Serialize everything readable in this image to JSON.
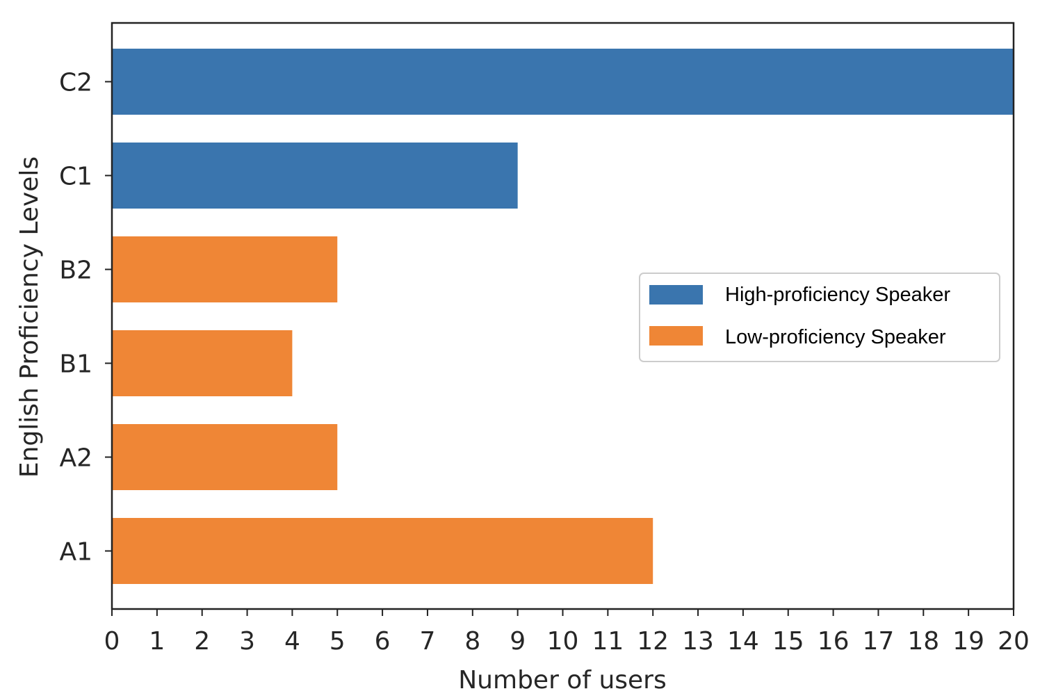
{
  "chart_data": {
    "type": "bar",
    "orientation": "horizontal",
    "categories": [
      "C2",
      "C1",
      "B2",
      "B1",
      "A2",
      "A1"
    ],
    "values": [
      20,
      9,
      5,
      4,
      5,
      12
    ],
    "groups": [
      "High-proficiency Speaker",
      "High-proficiency Speaker",
      "Low-proficiency Speaker",
      "Low-proficiency Speaker",
      "Low-proficiency Speaker",
      "Low-proficiency Speaker"
    ],
    "title": "",
    "xlabel": "Number of users",
    "ylabel": "English Proficiency Levels",
    "xlim": [
      0,
      20
    ],
    "xticks": [
      0,
      1,
      2,
      3,
      4,
      5,
      6,
      7,
      8,
      9,
      10,
      11,
      12,
      13,
      14,
      15,
      16,
      17,
      18,
      19,
      20
    ],
    "grid": false,
    "legend": {
      "placement": "center-right",
      "entries": [
        {
          "label": "High-proficiency Speaker",
          "color": "#3a75ae"
        },
        {
          "label": "Low-proficiency Speaker",
          "color": "#ef8636"
        }
      ]
    }
  }
}
